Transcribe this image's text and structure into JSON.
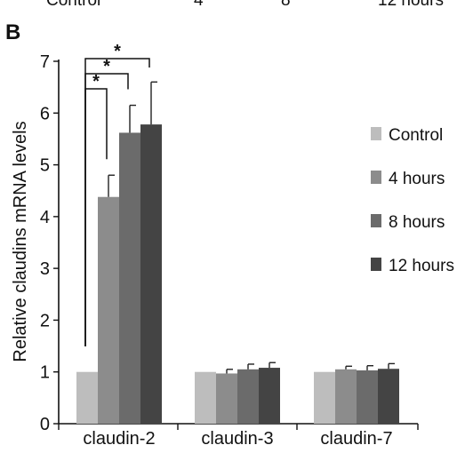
{
  "top_cropped_text": [
    "Control",
    "4",
    "8",
    "12 hours"
  ],
  "panel_label": "B",
  "chart_data": {
    "type": "bar",
    "title": "",
    "xlabel": "",
    "ylabel": "Relative claudins mRNA levels",
    "ylim": [
      0,
      7
    ],
    "yticks": [
      0,
      1,
      2,
      3,
      4,
      5,
      6,
      7
    ],
    "grid": false,
    "legend_position": "right",
    "categories": [
      "claudin-2",
      "claudin-3",
      "claudin-7"
    ],
    "series": [
      {
        "name": "Control",
        "color": "#bdbdbd",
        "values": [
          1.0,
          1.0,
          1.0
        ],
        "errors": [
          0,
          0,
          0
        ]
      },
      {
        "name": "4 hours",
        "color": "#8c8c8c",
        "values": [
          4.38,
          0.97,
          1.05
        ],
        "errors": [
          0.42,
          0.08,
          0.06
        ]
      },
      {
        "name": "8 hours",
        "color": "#6b6b6b",
        "values": [
          5.62,
          1.05,
          1.03
        ],
        "errors": [
          0.53,
          0.1,
          0.09
        ]
      },
      {
        "name": "12 hours",
        "color": "#444444",
        "values": [
          5.78,
          1.08,
          1.06
        ],
        "errors": [
          0.82,
          0.1,
          0.1
        ]
      }
    ],
    "significance": [
      {
        "category": "claudin-2",
        "from_series": 0,
        "to_series": 1,
        "label": "*"
      },
      {
        "category": "claudin-2",
        "from_series": 0,
        "to_series": 2,
        "label": "*"
      },
      {
        "category": "claudin-2",
        "from_series": 0,
        "to_series": 3,
        "label": "*"
      }
    ]
  }
}
